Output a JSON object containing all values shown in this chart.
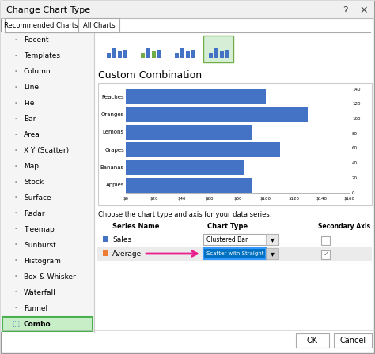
{
  "title": "Change Chart Type",
  "tab_labels": [
    "Recommended Charts",
    "All Charts"
  ],
  "left_menu": [
    "Recent",
    "Templates",
    "Column",
    "Line",
    "Pie",
    "Bar",
    "Area",
    "X Y (Scatter)",
    "Map",
    "Stock",
    "Surface",
    "Radar",
    "Treemap",
    "Sunburst",
    "Histogram",
    "Box & Whisker",
    "Waterfall",
    "Funnel",
    "Combo"
  ],
  "section_title": "Custom Combination",
  "categories": [
    "Peaches",
    "Oranges",
    "Lemons",
    "Grapes",
    "Bananas",
    "Apples"
  ],
  "values": [
    100,
    130,
    90,
    110,
    85,
    90
  ],
  "bar_color": "#4472C4",
  "x_ticks": [
    "$0",
    "$20",
    "$40",
    "$60",
    "$80",
    "$100",
    "$120",
    "$140",
    "$160"
  ],
  "y_right_ticks": [
    "0",
    "20",
    "40",
    "60",
    "80",
    "100",
    "120",
    "140"
  ],
  "bottom_title": "Choose the chart type and axis for your data series:",
  "series_name_col": "Series Name",
  "chart_type_col": "Chart Type",
  "secondary_axis_col": "Secondary Axis",
  "row1_name": "Sales",
  "row1_color": "#4472C4",
  "row1_chart": "Clustered Bar",
  "row2_name": "Average",
  "row2_color": "#ED7D31",
  "row2_chart": "Scatter with Straight ...",
  "arrow_color": "#E91E8C",
  "bg_color": "#E8E8E8",
  "dialog_bg": "#FFFFFF",
  "left_panel_bg": "#F5F5F5",
  "highlight_green_border": "#4CAF50",
  "highlight_green_fill": "#C8EEC8",
  "highlight_blue": "#0070C0",
  "row2_bg": "#EBEBEB",
  "tab_active_bg": "#FFFFFF",
  "icon_selected_bg": "#D5EED5",
  "icon_selected_border": "#70AD47"
}
